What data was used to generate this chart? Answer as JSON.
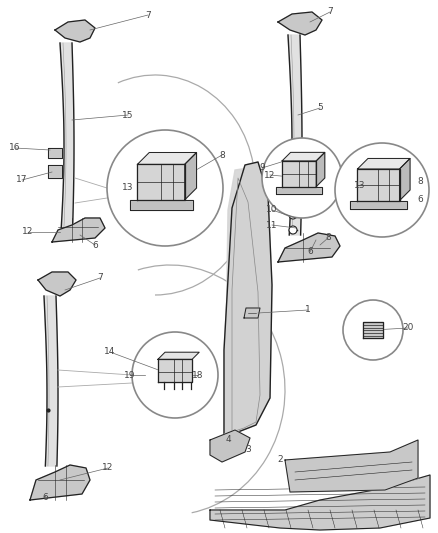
{
  "background_color": "#ffffff",
  "fig_width": 4.38,
  "fig_height": 5.33,
  "dpi": 100,
  "text_color": "#444444",
  "line_color": "#222222",
  "light_fill": "#e0e0e0",
  "mid_fill": "#c8c8c8",
  "dark_fill": "#a0a0a0"
}
